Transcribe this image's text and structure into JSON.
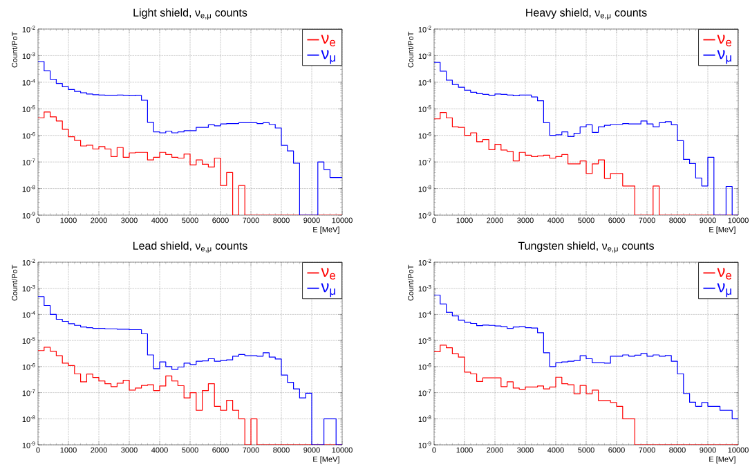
{
  "chart_data": [
    {
      "type": "histogram",
      "title": "Light shield,   ν$_{e,μ}$ counts",
      "xlabel": "E [MeV]",
      "ylabel": "Count/PoT",
      "log": true,
      "grid": true,
      "legend": "top right",
      "xlim": [
        0,
        10000
      ],
      "ylim": [
        1e-09,
        0.01
      ],
      "xticks": [
        0,
        1000,
        2000,
        3000,
        4000,
        5000,
        6000,
        7000,
        8000,
        9000,
        10000
      ],
      "yticks": [
        {
          "value": 1e-09,
          "label": "10$^{-9}$"
        },
        {
          "value": 1e-08,
          "label": "10$^{-8}$"
        },
        {
          "value": 1e-07,
          "label": "10$^{-7}$"
        },
        {
          "value": 1e-06,
          "label": "10$^{-6}$"
        },
        {
          "value": 1e-05,
          "label": "10$^{-5}$"
        },
        {
          "value": 0.0001,
          "label": "10$^{-4}$"
        },
        {
          "value": 0.001,
          "label": "10$^{-3}$"
        },
        {
          "value": 0.01,
          "label": "10$^{-2}$"
        }
      ],
      "bins": [
        0,
        200,
        400,
        600,
        800,
        1000,
        1200,
        1400,
        1600,
        1800,
        2000,
        2200,
        2400,
        2600,
        2800,
        3000,
        3200,
        3400,
        3600,
        3800,
        4000,
        4200,
        4400,
        4600,
        4800,
        5000,
        5200,
        5400,
        5600,
        5800,
        6000,
        6200,
        6400,
        6600,
        6800,
        7000,
        7200,
        7400,
        7600,
        7800,
        8000,
        8200,
        8400,
        8600,
        8800,
        9000,
        9200,
        9400,
        9600,
        9800,
        10000
      ],
      "series": [
        {
          "name": "ν$_{e}$",
          "color": "#ff0000",
          "values": [
            4.6e-06,
            7.6e-06,
            5e-06,
            3.5e-06,
            1.7e-06,
            8.9e-07,
            6.5e-07,
            4e-07,
            4.3e-07,
            3.1e-07,
            3.8e-07,
            3.1e-07,
            1.6e-07,
            3.5e-07,
            1.5e-07,
            2.2e-07,
            2.3e-07,
            2.3e-07,
            1.2e-07,
            1.5e-07,
            2.3e-07,
            1.9e-07,
            1.5e-07,
            1.4e-07,
            2e-07,
            7.8e-08,
            1.2e-07,
            8.2e-08,
            6.5e-08,
            1.4e-07,
            1.3e-08,
            4e-08,
            null,
            1.3e-08,
            null,
            null,
            null,
            null,
            null,
            null,
            null,
            null,
            null,
            null,
            null,
            null,
            null,
            null,
            null,
            null
          ]
        },
        {
          "name": "ν$_{μ}$",
          "color": "#0000ff",
          "values": [
            0.0006,
            0.00027,
            0.00013,
            9e-05,
            6.8e-05,
            5.3e-05,
            4.5e-05,
            4e-05,
            3.6e-05,
            3.4e-05,
            3.3e-05,
            3.2e-05,
            3.2e-05,
            3.3e-05,
            3.2e-05,
            3.1e-05,
            3.2e-05,
            2.1e-05,
            3.1e-06,
            1.35e-06,
            1.25e-06,
            1.45e-06,
            1.25e-06,
            1.35e-06,
            1.5e-06,
            1.5e-06,
            2e-06,
            2e-06,
            2.5e-06,
            2.3e-06,
            2.7e-06,
            2.8e-06,
            2.8e-06,
            3e-06,
            3e-06,
            3e-06,
            2.8e-06,
            3e-06,
            2.6e-06,
            1.9e-06,
            4.2e-07,
            2.6e-07,
            9e-08,
            null,
            null,
            null,
            1e-07,
            5.2e-08,
            2.6e-08,
            2.6e-08
          ]
        }
      ]
    },
    {
      "type": "histogram",
      "title": "Heavy shield,   ν$_{e,μ}$ counts",
      "xlabel": "E [MeV]",
      "ylabel": "Count/PoT",
      "log": true,
      "grid": true,
      "legend": "top right",
      "xlim": [
        0,
        10000
      ],
      "ylim": [
        1e-09,
        0.01
      ],
      "xticks": [
        0,
        1000,
        2000,
        3000,
        4000,
        5000,
        6000,
        7000,
        8000,
        9000,
        10000
      ],
      "yticks": [
        {
          "value": 1e-09,
          "label": "10$^{-9}$"
        },
        {
          "value": 1e-08,
          "label": "10$^{-8}$"
        },
        {
          "value": 1e-07,
          "label": "10$^{-7}$"
        },
        {
          "value": 1e-06,
          "label": "10$^{-6}$"
        },
        {
          "value": 1e-05,
          "label": "10$^{-5}$"
        },
        {
          "value": 0.0001,
          "label": "10$^{-4}$"
        },
        {
          "value": 0.001,
          "label": "10$^{-3}$"
        },
        {
          "value": 0.01,
          "label": "10$^{-2}$"
        }
      ],
      "bins": [
        0,
        200,
        400,
        600,
        800,
        1000,
        1200,
        1400,
        1600,
        1800,
        2000,
        2200,
        2400,
        2600,
        2800,
        3000,
        3200,
        3400,
        3600,
        3800,
        4000,
        4200,
        4400,
        4600,
        4800,
        5000,
        5200,
        5400,
        5600,
        5800,
        6000,
        6200,
        6400,
        6600,
        6800,
        7000,
        7200,
        7400,
        7600,
        7800,
        8000,
        8200,
        8400,
        8600,
        8800,
        9000,
        9200,
        9400,
        9600,
        9800,
        10000
      ],
      "series": [
        {
          "name": "ν$_{e}$",
          "color": "#ff0000",
          "values": [
            4.2e-06,
            7.3e-06,
            4.6e-06,
            2.1e-06,
            2e-06,
            1e-06,
            1.25e-06,
            5.8e-07,
            7e-07,
            2.9e-07,
            4.6e-07,
            2.8e-07,
            2.5e-07,
            1.1e-07,
            2.3e-07,
            1.8e-07,
            1.6e-07,
            1.7e-07,
            1.8e-07,
            1.4e-07,
            1.6e-07,
            1.9e-07,
            8.5e-08,
            8.5e-08,
            1.1e-07,
            3.7e-08,
            8.5e-08,
            1.2e-07,
            2.4e-08,
            3.7e-08,
            3.7e-08,
            1.25e-08,
            1.25e-08,
            null,
            null,
            null,
            1.25e-08,
            null,
            null,
            null,
            null,
            null,
            null,
            null,
            null,
            null,
            null,
            null,
            null,
            null
          ]
        },
        {
          "name": "ν$_{μ}$",
          "color": "#0000ff",
          "values": [
            0.00056,
            0.00026,
            0.00012,
            8.2e-05,
            6.5e-05,
            5e-05,
            4.2e-05,
            3.7e-05,
            3.5e-05,
            3.2e-05,
            3.6e-05,
            3.5e-05,
            3.3e-05,
            3.1e-05,
            3.3e-05,
            3.3e-05,
            2.8e-05,
            2e-05,
            3e-06,
            1e-06,
            1.05e-06,
            1.35e-06,
            9e-07,
            1.2e-06,
            2.1e-06,
            2.5e-06,
            1.3e-06,
            2.1e-06,
            2.4e-06,
            2.6e-06,
            2.6e-06,
            2.8e-06,
            2.7e-06,
            2.7e-06,
            3.5e-06,
            2.7e-06,
            2.1e-06,
            3e-06,
            3.3e-06,
            2.5e-06,
            6.3e-07,
            1.25e-07,
            8.7e-08,
            2.5e-08,
            1.25e-08,
            1.5e-07,
            null,
            null,
            1.2e-08,
            null
          ]
        }
      ]
    },
    {
      "type": "histogram",
      "title": "Lead shield,   ν$_{e,μ}$ counts",
      "xlabel": "E [MeV]",
      "ylabel": "Count/PoT",
      "log": true,
      "grid": true,
      "legend": "top right",
      "xlim": [
        0,
        10000
      ],
      "ylim": [
        1e-09,
        0.01
      ],
      "xticks": [
        0,
        1000,
        2000,
        3000,
        4000,
        5000,
        6000,
        7000,
        8000,
        9000,
        10000
      ],
      "yticks": [
        {
          "value": 1e-09,
          "label": "10$^{-9}$"
        },
        {
          "value": 1e-08,
          "label": "10$^{-8}$"
        },
        {
          "value": 1e-07,
          "label": "10$^{-7}$"
        },
        {
          "value": 1e-06,
          "label": "10$^{-6}$"
        },
        {
          "value": 1e-05,
          "label": "10$^{-5}$"
        },
        {
          "value": 0.0001,
          "label": "10$^{-4}$"
        },
        {
          "value": 0.001,
          "label": "10$^{-3}$"
        },
        {
          "value": 0.01,
          "label": "10$^{-2}$"
        }
      ],
      "bins": [
        0,
        200,
        400,
        600,
        800,
        1000,
        1200,
        1400,
        1600,
        1800,
        2000,
        2200,
        2400,
        2600,
        2800,
        3000,
        3200,
        3400,
        3600,
        3800,
        4000,
        4200,
        4400,
        4600,
        4800,
        5000,
        5200,
        5400,
        5600,
        5800,
        6000,
        6200,
        6400,
        6600,
        6800,
        7000,
        7200,
        7400,
        7600,
        7800,
        8000,
        8200,
        8400,
        8600,
        8800,
        9000,
        9200,
        9400,
        9600,
        9800,
        10000
      ],
      "series": [
        {
          "name": "ν$_{e}$",
          "color": "#ff0000",
          "values": [
            4.1e-06,
            5.5e-06,
            3.9e-06,
            2.6e-06,
            1.35e-06,
            1.1e-06,
            5.3e-07,
            2.6e-07,
            5.2e-07,
            3.8e-07,
            2.8e-07,
            2.2e-07,
            1.7e-07,
            2.3e-07,
            3e-07,
            1.25e-07,
            1.5e-07,
            1.9e-07,
            2e-07,
            1.2e-07,
            1.8e-07,
            4.4e-07,
            2.8e-07,
            1.85e-07,
            6.3e-08,
            1e-07,
            2.1e-08,
            1.2e-07,
            2.2e-07,
            3e-08,
            2.1e-08,
            5.1e-08,
            2.1e-08,
            1e-08,
            null,
            1e-08,
            null,
            null,
            null,
            null,
            null,
            null,
            null,
            null,
            null,
            null,
            null,
            null,
            null,
            null
          ]
        },
        {
          "name": "ν$_{μ}$",
          "color": "#0000ff",
          "values": [
            0.00048,
            0.00022,
            0.0001,
            6.5e-05,
            5.4e-05,
            4.4e-05,
            3.8e-05,
            3.3e-05,
            3.1e-05,
            2.9e-05,
            2.9e-05,
            2.8e-05,
            2.8e-05,
            2.7e-05,
            2.7e-05,
            2.6e-05,
            2.6e-05,
            1.8e-05,
            2.8e-06,
            8.3e-07,
            1.5e-06,
            1e-06,
            7.8e-07,
            9.6e-07,
            1.35e-06,
            1.2e-06,
            1.6e-06,
            1.65e-06,
            2e-06,
            1.6e-06,
            1.7e-06,
            1.8e-06,
            2.5e-06,
            2.9e-06,
            2.6e-06,
            2.6e-06,
            2.5e-06,
            3.4e-06,
            2.3e-06,
            1.95e-06,
            4.7e-07,
            2.5e-07,
            1.4e-07,
            6.3e-08,
            9.5e-08,
            null,
            null,
            1e-08,
            1e-08,
            null
          ]
        }
      ]
    },
    {
      "type": "histogram",
      "title": "Tungsten shield,   ν$_{e,μ}$ counts",
      "xlabel": "E [MeV]",
      "ylabel": "Count/PoT",
      "log": true,
      "grid": true,
      "legend": "top right",
      "xlim": [
        0,
        10000
      ],
      "ylim": [
        1e-09,
        0.01
      ],
      "xticks": [
        0,
        1000,
        2000,
        3000,
        4000,
        5000,
        6000,
        7000,
        8000,
        9000,
        10000
      ],
      "yticks": [
        {
          "value": 1e-09,
          "label": "10$^{-9}$"
        },
        {
          "value": 1e-08,
          "label": "10$^{-8}$"
        },
        {
          "value": 1e-07,
          "label": "10$^{-7}$"
        },
        {
          "value": 1e-06,
          "label": "10$^{-6}$"
        },
        {
          "value": 1e-05,
          "label": "10$^{-5}$"
        },
        {
          "value": 0.0001,
          "label": "10$^{-4}$"
        },
        {
          "value": 0.001,
          "label": "10$^{-3}$"
        },
        {
          "value": 0.01,
          "label": "10$^{-2}$"
        }
      ],
      "bins": [
        0,
        200,
        400,
        600,
        800,
        1000,
        1200,
        1400,
        1600,
        1800,
        2000,
        2200,
        2400,
        2600,
        2800,
        3000,
        3200,
        3400,
        3600,
        3800,
        4000,
        4200,
        4400,
        4600,
        4800,
        5000,
        5200,
        5400,
        5600,
        5800,
        6000,
        6200,
        6400,
        6600,
        6800,
        7000,
        7200,
        7400,
        7600,
        7800,
        8000,
        8200,
        8400,
        8600,
        8800,
        9000,
        9200,
        9400,
        9600,
        9800,
        10000
      ],
      "series": [
        {
          "name": "ν$_{e}$",
          "color": "#ff0000",
          "values": [
            3.7e-06,
            6.6e-06,
            5.3e-06,
            3.1e-06,
            2.3e-06,
            6.1e-07,
            5.3e-07,
            2.7e-07,
            3.7e-07,
            3.7e-07,
            3.7e-07,
            1.7e-07,
            2.6e-07,
            1.5e-07,
            1.35e-07,
            1.65e-07,
            1.65e-07,
            1.8e-07,
            1.4e-07,
            1.65e-07,
            3.9e-07,
            2.2e-07,
            2e-07,
            9.1e-08,
            1.9e-07,
            9.1e-08,
            1.25e-07,
            5e-08,
            5e-08,
            4.2e-08,
            3e-08,
            1e-08,
            1e-08,
            null,
            null,
            null,
            null,
            null,
            null,
            null,
            null,
            null,
            null,
            null,
            null,
            null,
            null,
            null,
            null,
            null
          ]
        },
        {
          "name": "ν$_{μ}$",
          "color": "#0000ff",
          "values": [
            0.00055,
            0.00025,
            0.00012,
            8.7e-05,
            6e-05,
            5e-05,
            4.5e-05,
            3.7e-05,
            3.9e-05,
            3.8e-05,
            3.6e-05,
            3.4e-05,
            2.9e-05,
            3.3e-05,
            3.4e-05,
            3.1e-05,
            3e-05,
            2e-05,
            3.4e-06,
            1e-06,
            1.4e-06,
            1.5e-06,
            1.6e-06,
            1.7e-06,
            2.6e-06,
            2e-06,
            1.4e-06,
            1.4e-06,
            1.35e-06,
            2.5e-06,
            2.5e-06,
            2.8e-06,
            2.5e-06,
            2.75e-06,
            3.2e-06,
            2.5e-06,
            2.8e-06,
            2.5e-06,
            2.65e-06,
            1.6e-06,
            5.3e-07,
            9.3e-08,
            4.3e-08,
            3e-08,
            4.2e-08,
            3e-08,
            3e-08,
            2.1e-08,
            2.1e-08,
            1e-08
          ]
        }
      ]
    }
  ]
}
